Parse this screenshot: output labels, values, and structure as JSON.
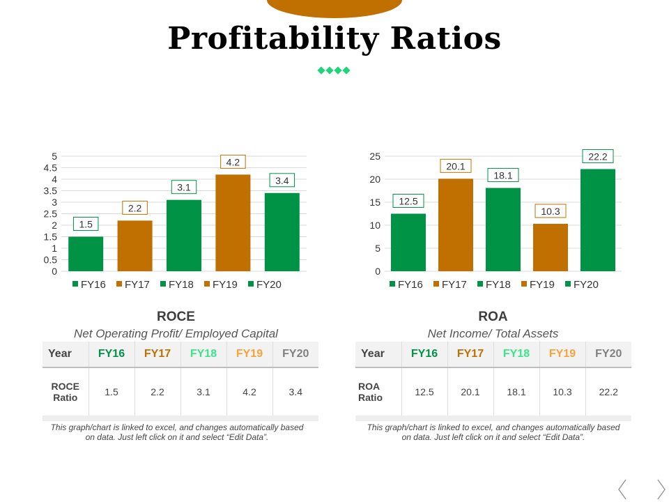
{
  "page": {
    "title": "Profitability Ratios"
  },
  "colors": {
    "green": "#009245",
    "orange": "#c07000",
    "fy18_header": "#39e68a",
    "fy19_header": "#f7a33a",
    "fy20_header": "#808080"
  },
  "left_panel": {
    "chart_title": "ROCE",
    "chart_subtitle": "Net Operating Profit/ Employed Capital",
    "table": {
      "headers": [
        "Year",
        "FY16",
        "FY17",
        "FY18",
        "FY19",
        "FY20"
      ],
      "row_label": "ROCE Ratio",
      "values": [
        "1.5",
        "2.2",
        "3.1",
        "4.2",
        "3.4"
      ]
    },
    "note": "This graph/chart is linked to excel, and changes automatically based on data. Just left click on it and select “Edit Data”."
  },
  "right_panel": {
    "chart_title": "ROA",
    "chart_subtitle": "Net Income/ Total Assets",
    "table": {
      "headers": [
        "Year",
        "FY16",
        "FY17",
        "FY18",
        "FY19",
        "FY20"
      ],
      "row_label": "ROA Ratio",
      "values": [
        "12.5",
        "20.1",
        "18.1",
        "10.3",
        "22.2"
      ]
    },
    "note": "This graph/chart is linked to excel, and changes automatically based on data. Just left click on it and select “Edit Data”."
  },
  "chart_data": [
    {
      "type": "bar",
      "title": "ROCE",
      "categories": [
        "FY16",
        "FY17",
        "FY18",
        "FY19",
        "FY20"
      ],
      "values": [
        1.5,
        2.2,
        3.1,
        4.2,
        3.4
      ],
      "colors": [
        "#009245",
        "#c07000",
        "#009245",
        "#c07000",
        "#009245"
      ],
      "yticks": [
        "0",
        "0.5",
        "1",
        "1.5",
        "2",
        "2.5",
        "3",
        "3.5",
        "4",
        "4.5",
        "5"
      ],
      "ylim": [
        0,
        5
      ],
      "grid": true,
      "legend": "bottom"
    },
    {
      "type": "bar",
      "title": "ROA",
      "categories": [
        "FY16",
        "FY17",
        "FY18",
        "FY19",
        "FY20"
      ],
      "values": [
        12.5,
        20.1,
        18.1,
        10.3,
        22.2
      ],
      "colors": [
        "#009245",
        "#c07000",
        "#009245",
        "#c07000",
        "#009245"
      ],
      "yticks": [
        "0",
        "5",
        "10",
        "15",
        "20",
        "25"
      ],
      "ylim": [
        0,
        25
      ],
      "grid": true,
      "legend": "bottom"
    }
  ]
}
